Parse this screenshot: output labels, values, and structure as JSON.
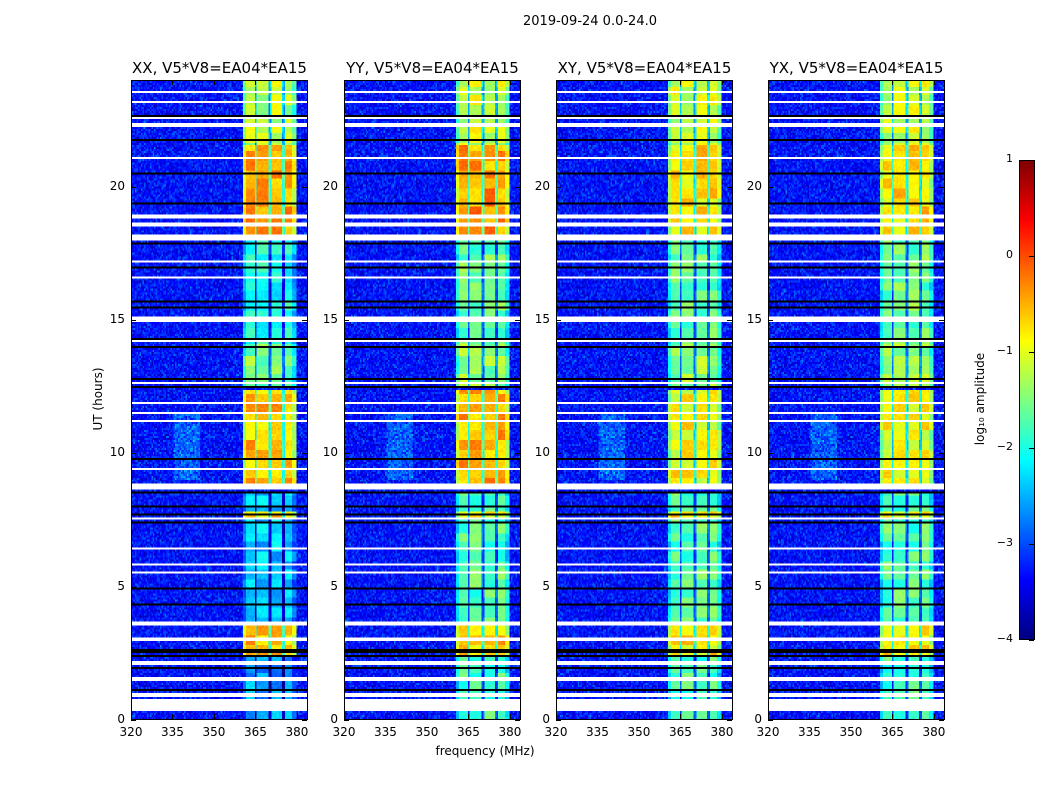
{
  "chart_data": {
    "type": "heatmap",
    "title": "2019-09-24 0.0-24.0",
    "xlabel": "frequency (MHz)",
    "ylabel": "UT (hours)",
    "xlim": [
      320,
      384
    ],
    "ylim": [
      0,
      24
    ],
    "xticks": [
      "320",
      "335",
      "350",
      "365",
      "380"
    ],
    "yticks": [
      "0",
      "5",
      "10",
      "15",
      "20"
    ],
    "colorbar": {
      "label": "log₁₀ amplitude",
      "range": [
        -4,
        1
      ],
      "ticks": [
        "1",
        "0",
        "−1",
        "−2",
        "−3",
        "−4"
      ],
      "colormap": "jet"
    },
    "background_level": -3.3,
    "band": {
      "start_mhz": 360.5,
      "end_mhz": 380.0,
      "channel_gaps_mhz": [
        365.2,
        370.3,
        375.3
      ]
    },
    "panels": [
      {
        "title": "XX, V5*V8=EA04*EA15",
        "band_levels": [
          [
            0,
            2.3,
            -2.6
          ],
          [
            2.3,
            3.5,
            -0.5
          ],
          [
            3.7,
            8.5,
            -2.4
          ],
          [
            7.6,
            7.8,
            -0.7
          ],
          [
            8.8,
            12.4,
            -0.6
          ],
          [
            12.5,
            14.1,
            -1.5
          ],
          [
            14.1,
            18.0,
            -2.0
          ],
          [
            18.2,
            21.6,
            -0.45
          ],
          [
            21.6,
            24,
            -1.2
          ]
        ]
      },
      {
        "title": "YY, V5*V8=EA04*EA15",
        "band_levels": [
          [
            0,
            2.3,
            -1.8
          ],
          [
            2.3,
            3.5,
            -0.6
          ],
          [
            3.7,
            8.5,
            -1.7
          ],
          [
            7.6,
            7.8,
            -0.8
          ],
          [
            8.8,
            12.4,
            -0.5
          ],
          [
            12.5,
            14.1,
            -1.4
          ],
          [
            14.1,
            18.0,
            -1.6
          ],
          [
            18.2,
            21.6,
            -0.4
          ],
          [
            21.6,
            24,
            -1.1
          ]
        ]
      },
      {
        "title": "XY, V5*V8=EA04*EA15",
        "band_levels": [
          [
            0,
            2.3,
            -1.8
          ],
          [
            2.3,
            3.5,
            -0.8
          ],
          [
            3.7,
            8.5,
            -1.7
          ],
          [
            7.6,
            7.8,
            -0.8
          ],
          [
            8.8,
            12.4,
            -0.9
          ],
          [
            12.5,
            14.1,
            -1.4
          ],
          [
            14.1,
            18.0,
            -1.6
          ],
          [
            18.2,
            21.6,
            -0.7
          ],
          [
            21.6,
            24,
            -1.1
          ]
        ]
      },
      {
        "title": "YX, V5*V8=EA04*EA15",
        "band_levels": [
          [
            0,
            2.3,
            -1.8
          ],
          [
            2.3,
            3.5,
            -0.8
          ],
          [
            3.7,
            8.5,
            -1.7
          ],
          [
            7.6,
            7.8,
            -0.8
          ],
          [
            8.8,
            12.4,
            -0.9
          ],
          [
            12.5,
            14.1,
            -1.4
          ],
          [
            14.1,
            18.0,
            -1.6
          ],
          [
            18.2,
            21.6,
            -0.7
          ],
          [
            21.6,
            24,
            -1.1
          ]
        ]
      }
    ],
    "flagged_intervals_hours": [
      [
        0.3,
        0.75
      ],
      [
        2.0,
        2.2
      ],
      [
        3.5,
        3.7
      ],
      [
        8.6,
        8.85
      ],
      [
        18.0,
        18.22
      ],
      [
        22.3,
        22.4
      ],
      [
        12.62,
        12.7
      ],
      [
        14.15,
        14.25
      ]
    ],
    "flagged_lines_hours": [
      0.9,
      1.5,
      3.0,
      5.5,
      5.8,
      6.4,
      7.55,
      9.4,
      11.2,
      11.5,
      11.9,
      15.0,
      15.1,
      16.6,
      17.2,
      18.6,
      18.9,
      21.1,
      22.6,
      23.2,
      23.6
    ],
    "zero_lines_hours": [
      0.35,
      0.75,
      1.1,
      1.9,
      2.35,
      2.5,
      2.6,
      3.3,
      3.55,
      4.3,
      4.9,
      6.0,
      6.9,
      7.4,
      7.7,
      8.0,
      8.5,
      9.8,
      12.5,
      12.6,
      12.8,
      13.2,
      14.0,
      14.3,
      15.3,
      15.5,
      15.7,
      17.0,
      17.9,
      18.3,
      19.4,
      20.5,
      21.8,
      22.5,
      22.7
    ]
  }
}
